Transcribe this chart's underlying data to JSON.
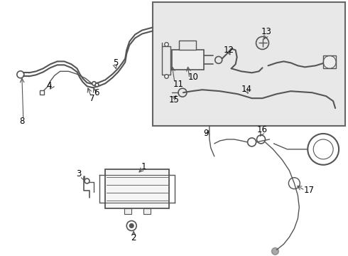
{
  "bg_color": "#ffffff",
  "box_color": "#e8e8e8",
  "line_color": "#555555",
  "label_color": "#000000",
  "label_fontsize": 8.5,
  "fig_width": 4.9,
  "fig_height": 3.6,
  "dpi": 100
}
